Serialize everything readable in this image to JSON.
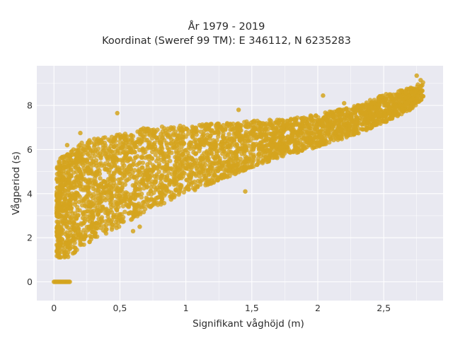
{
  "chart_data": {
    "type": "scatter",
    "title": "År 1979 - 2019",
    "subtitle": "Koordinat (Sweref 99 TM): E 346112, N 6235283",
    "xlabel": "Signifikant våghöjd (m)",
    "ylabel": "Vågperiod (s)",
    "xlim": [
      -0.13,
      2.95
    ],
    "ylim": [
      -0.85,
      9.8
    ],
    "x_ticks": [
      0,
      0.5,
      1,
      1.5,
      2,
      2.5
    ],
    "x_tick_labels": [
      "0",
      "0,5",
      "1",
      "1,5",
      "2",
      "2,5"
    ],
    "y_ticks": [
      0,
      2,
      4,
      6,
      8
    ],
    "y_tick_labels": [
      "0",
      "2",
      "4",
      "6",
      "8"
    ],
    "grid": true,
    "marker_color": "#D4A41E",
    "background_color": "#E9E9F1",
    "envelope": {
      "x": [
        0.02,
        0.05,
        0.1,
        0.2,
        0.3,
        0.5,
        0.7,
        1.0,
        1.3,
        1.5,
        1.8,
        2.0,
        2.3,
        2.5,
        2.7,
        2.8
      ],
      "lower": [
        1.1,
        1.1,
        1.1,
        1.5,
        1.9,
        2.5,
        3.2,
        4.0,
        4.7,
        5.2,
        5.8,
        6.1,
        6.7,
        7.2,
        7.8,
        8.3
      ],
      "upper": [
        5.4,
        5.6,
        5.9,
        6.3,
        6.5,
        6.7,
        7.0,
        7.1,
        7.2,
        7.3,
        7.4,
        7.6,
        8.0,
        8.5,
        8.8,
        9.1
      ]
    },
    "zero_period_segment": {
      "x": [
        0,
        0.12
      ],
      "y": 0
    },
    "outliers": [
      {
        "x": 0.48,
        "y": 7.65
      },
      {
        "x": 0.2,
        "y": 6.75
      },
      {
        "x": 0.1,
        "y": 6.2
      },
      {
        "x": 0.6,
        "y": 2.3
      },
      {
        "x": 0.65,
        "y": 2.5
      },
      {
        "x": 1.4,
        "y": 7.8
      },
      {
        "x": 1.45,
        "y": 4.1
      },
      {
        "x": 2.04,
        "y": 8.45
      },
      {
        "x": 2.2,
        "y": 8.1
      },
      {
        "x": 2.75,
        "y": 9.35
      },
      {
        "x": 2.78,
        "y": 9.15
      }
    ]
  }
}
